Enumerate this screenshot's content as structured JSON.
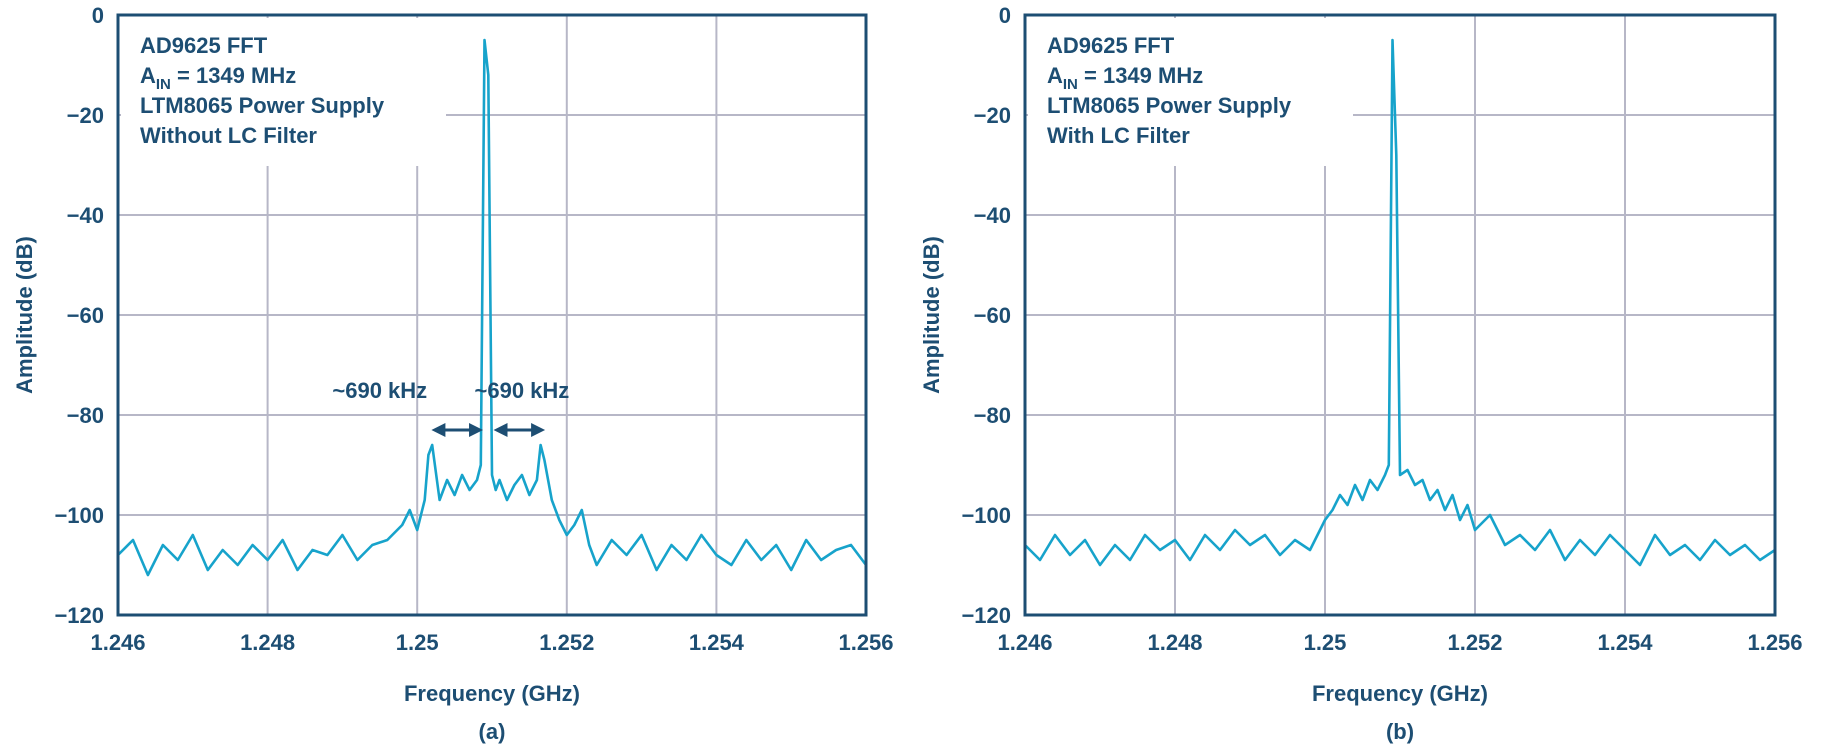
{
  "chart_data": [
    {
      "type": "line",
      "panel_label": "(a)",
      "annotation_lines": [
        {
          "parts": [
            {
              "t": "AD9625 FFT"
            }
          ]
        },
        {
          "parts": [
            {
              "t": "A"
            },
            {
              "t": "IN",
              "sub": true
            },
            {
              "t": " = 1349 MHz"
            }
          ]
        },
        {
          "parts": [
            {
              "t": "LTM8065 Power Supply"
            }
          ]
        },
        {
          "parts": [
            {
              "t": "Without LC Filter"
            }
          ]
        }
      ],
      "spur_labels": [
        {
          "text": "~690 kHz",
          "x": 1.2495,
          "y": -75
        },
        {
          "text": "~690 kHz",
          "x": 1.2514,
          "y": -75
        }
      ],
      "spur_arrows": [
        {
          "x1": 1.25019,
          "x2": 1.25088,
          "y": -83
        },
        {
          "x1": 1.25102,
          "x2": 1.25171,
          "y": -83
        }
      ],
      "xlabel": "Frequency (GHz)",
      "ylabel": "Amplitude (dB)",
      "xlim": [
        1.246,
        1.256
      ],
      "ylim": [
        -120,
        0
      ],
      "xticks": [
        1.246,
        1.248,
        1.25,
        1.252,
        1.254,
        1.256
      ],
      "xtick_labels": [
        "1.246",
        "1.248",
        "1.25",
        "1.252",
        "1.254",
        "1.256"
      ],
      "yticks": [
        0,
        -20,
        -40,
        -60,
        -80,
        -100,
        -120
      ],
      "ytick_labels": [
        "0",
        "−20",
        "−40",
        "−60",
        "−80",
        "−100",
        "−120"
      ],
      "grid": true,
      "line_color": "#17a3cb",
      "series": [
        {
          "x": [
            1.246,
            1.2462,
            1.2464,
            1.2466,
            1.2468,
            1.247,
            1.2472,
            1.2474,
            1.2476,
            1.2478,
            1.248,
            1.2482,
            1.2484,
            1.2486,
            1.2488,
            1.249,
            1.2492,
            1.2494,
            1.2496,
            1.2498,
            1.2499,
            1.25,
            1.2501,
            1.25015,
            1.2502,
            1.2503,
            1.2504,
            1.2505,
            1.2506,
            1.2507,
            1.2508,
            1.25085,
            1.2509,
            1.25095,
            1.251,
            1.25105,
            1.2511,
            1.2512,
            1.2513,
            1.2514,
            1.2515,
            1.2516,
            1.25165,
            1.2517,
            1.2518,
            1.2519,
            1.252,
            1.2521,
            1.2522,
            1.2523,
            1.2524,
            1.2526,
            1.2528,
            1.253,
            1.2532,
            1.2534,
            1.2536,
            1.2538,
            1.254,
            1.2542,
            1.2544,
            1.2546,
            1.2548,
            1.255,
            1.2552,
            1.2554,
            1.2556,
            1.2558,
            1.256
          ],
          "y": [
            -108,
            -105,
            -112,
            -106,
            -109,
            -104,
            -111,
            -107,
            -110,
            -106,
            -109,
            -105,
            -111,
            -107,
            -108,
            -104,
            -109,
            -106,
            -105,
            -102,
            -99,
            -103,
            -97,
            -88,
            -86,
            -97,
            -93,
            -96,
            -92,
            -95,
            -93,
            -90,
            -5,
            -12,
            -92,
            -95,
            -93,
            -97,
            -94,
            -92,
            -96,
            -93,
            -86,
            -89,
            -97,
            -101,
            -104,
            -102,
            -99,
            -106,
            -110,
            -105,
            -108,
            -104,
            -111,
            -106,
            -109,
            -104,
            -108,
            -110,
            -105,
            -109,
            -106,
            -111,
            -105,
            -109,
            -107,
            -106,
            -110
          ]
        }
      ]
    },
    {
      "type": "line",
      "panel_label": "(b)",
      "annotation_lines": [
        {
          "parts": [
            {
              "t": "AD9625 FFT"
            }
          ]
        },
        {
          "parts": [
            {
              "t": "A"
            },
            {
              "t": "IN",
              "sub": true
            },
            {
              "t": " = 1349 MHz"
            }
          ]
        },
        {
          "parts": [
            {
              "t": "LTM8065 Power Supply"
            }
          ]
        },
        {
          "parts": [
            {
              "t": "With LC Filter"
            }
          ]
        }
      ],
      "spur_labels": [],
      "spur_arrows": [],
      "xlabel": "Frequency (GHz)",
      "ylabel": "Amplitude (dB)",
      "xlim": [
        1.246,
        1.256
      ],
      "ylim": [
        -120,
        0
      ],
      "xticks": [
        1.246,
        1.248,
        1.25,
        1.252,
        1.254,
        1.256
      ],
      "xtick_labels": [
        "1.246",
        "1.248",
        "1.25",
        "1.252",
        "1.254",
        "1.256"
      ],
      "yticks": [
        0,
        -20,
        -40,
        -60,
        -80,
        -100,
        -120
      ],
      "ytick_labels": [
        "0",
        "−20",
        "−40",
        "−60",
        "−80",
        "−100",
        "−120"
      ],
      "grid": true,
      "line_color": "#17a3cb",
      "series": [
        {
          "x": [
            1.246,
            1.2462,
            1.2464,
            1.2466,
            1.2468,
            1.247,
            1.2472,
            1.2474,
            1.2476,
            1.2478,
            1.248,
            1.2482,
            1.2484,
            1.2486,
            1.2488,
            1.249,
            1.2492,
            1.2494,
            1.2496,
            1.2498,
            1.25,
            1.2501,
            1.2502,
            1.2503,
            1.2504,
            1.2505,
            1.2506,
            1.2507,
            1.2508,
            1.25085,
            1.2509,
            1.25095,
            1.251,
            1.2511,
            1.2512,
            1.2513,
            1.2514,
            1.2515,
            1.2516,
            1.2517,
            1.2518,
            1.2519,
            1.252,
            1.2522,
            1.2524,
            1.2526,
            1.2528,
            1.253,
            1.2532,
            1.2534,
            1.2536,
            1.2538,
            1.254,
            1.2542,
            1.2544,
            1.2546,
            1.2548,
            1.255,
            1.2552,
            1.2554,
            1.2556,
            1.2558,
            1.256
          ],
          "y": [
            -106,
            -109,
            -104,
            -108,
            -105,
            -110,
            -106,
            -109,
            -104,
            -107,
            -105,
            -109,
            -104,
            -107,
            -103,
            -106,
            -104,
            -108,
            -105,
            -107,
            -101,
            -99,
            -96,
            -98,
            -94,
            -97,
            -93,
            -95,
            -92,
            -90,
            -5,
            -28,
            -92,
            -91,
            -94,
            -93,
            -97,
            -95,
            -99,
            -96,
            -101,
            -98,
            -103,
            -100,
            -106,
            -104,
            -107,
            -103,
            -109,
            -105,
            -108,
            -104,
            -107,
            -110,
            -104,
            -108,
            -106,
            -109,
            -105,
            -108,
            -106,
            -109,
            -107
          ]
        }
      ]
    }
  ]
}
